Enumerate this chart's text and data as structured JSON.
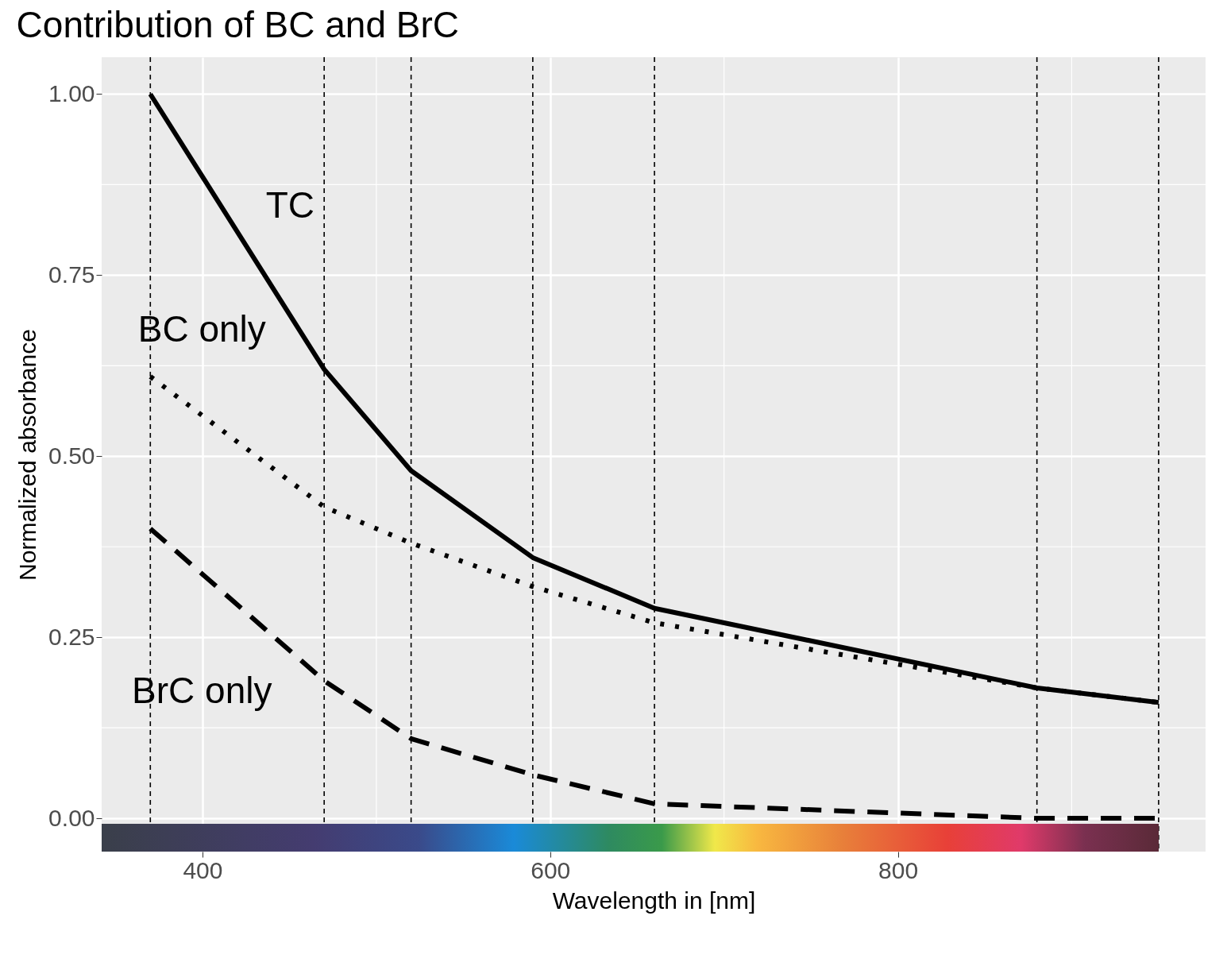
{
  "chart_data": {
    "type": "line",
    "title": "Contribution of BC and BrC",
    "xlabel": "Wavelength in [nm]",
    "ylabel": "Normalized absorbance",
    "x": [
      370,
      470,
      520,
      590,
      660,
      880,
      950
    ],
    "series": [
      {
        "name": "TC",
        "color": "#000000",
        "line_style": "solid",
        "values": [
          1.0,
          0.62,
          0.48,
          0.36,
          0.29,
          0.18,
          0.16
        ]
      },
      {
        "name": "BC only",
        "color": "#000000",
        "line_style": "dotted",
        "values": [
          0.61,
          0.43,
          0.38,
          0.32,
          0.27,
          0.18,
          0.16
        ]
      },
      {
        "name": "BrC only",
        "color": "#000000",
        "line_style": "dashed",
        "values": [
          0.4,
          0.19,
          0.11,
          0.06,
          0.02,
          0.0,
          0.0
        ]
      }
    ],
    "xlim": [
      342,
      977
    ],
    "ylim": [
      -0.046,
      1.051
    ],
    "xticks": [
      400,
      600,
      800
    ],
    "yticks": [
      {
        "value": 0,
        "label": "0.00"
      },
      {
        "value": 0.25,
        "label": "0.25"
      },
      {
        "value": 0.5,
        "label": "0.50"
      },
      {
        "value": 0.75,
        "label": "0.75"
      },
      {
        "value": 1,
        "label": "1.00"
      }
    ],
    "grid": true,
    "marker": "none",
    "ref_lines": [
      {
        "axis": "x",
        "value": 370,
        "color": "#000000",
        "line_style": "dashed"
      },
      {
        "axis": "x",
        "value": 470,
        "color": "#000000",
        "line_style": "dashed"
      },
      {
        "axis": "x",
        "value": 520,
        "color": "#000000",
        "line_style": "dashed"
      },
      {
        "axis": "x",
        "value": 590,
        "color": "#000000",
        "line_style": "dashed"
      },
      {
        "axis": "x",
        "value": 660,
        "color": "#000000",
        "line_style": "dashed"
      },
      {
        "axis": "x",
        "value": 880,
        "color": "#000000",
        "line_style": "dashed"
      },
      {
        "axis": "x",
        "value": 950,
        "color": "#000000",
        "line_style": "dashed"
      }
    ]
  }
}
